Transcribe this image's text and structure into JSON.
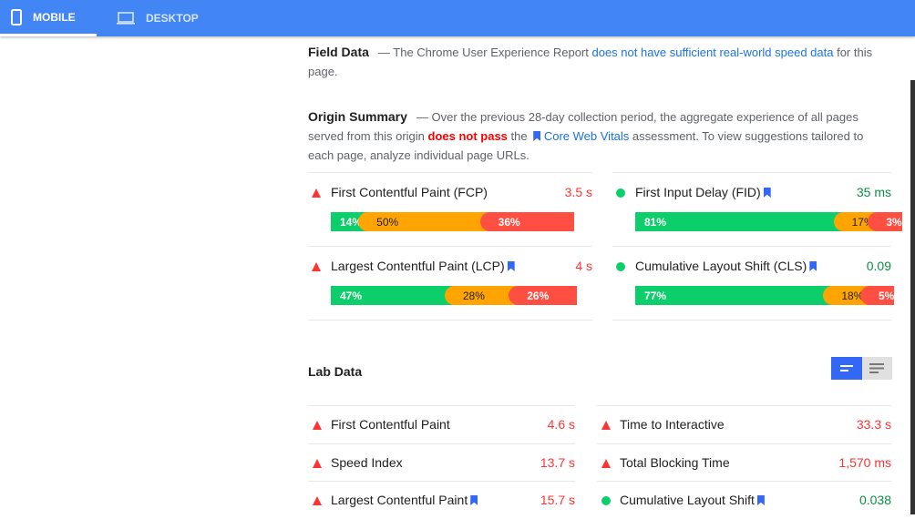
{
  "tabs": [
    {
      "label": "MOBILE",
      "icon": "mobile-icon",
      "active": true
    },
    {
      "label": "DESKTOP",
      "icon": "desktop-icon",
      "active": false
    }
  ],
  "field": {
    "title": "Field Data",
    "text1": "— The Chrome User Experience Report ",
    "link": "does not have sufficient real-world speed data",
    "text2": " for this page."
  },
  "origin": {
    "title": "Origin Summary",
    "text1": "— Over the previous 28-day collection period, the aggregate experience of all pages served from this origin ",
    "fail": "does not pass",
    "text2": " the ",
    "link": "Core Web Vitals",
    "text3": " assessment. To view suggestions tailored to each page, analyze individual page URLs."
  },
  "metrics": [
    {
      "label": "First Contentful Paint (FCP)",
      "value": "3.5 s",
      "status": "fail",
      "bookmark": false,
      "dist": [
        14,
        50,
        36
      ]
    },
    {
      "label": "First Input Delay (FID)",
      "value": "35 ms",
      "status": "pass",
      "bookmark": true,
      "dist": [
        81,
        17,
        3
      ]
    },
    {
      "label": "Largest Contentful Paint (LCP)",
      "value": "4 s",
      "status": "fail",
      "bookmark": true,
      "dist": [
        47,
        28,
        26
      ]
    },
    {
      "label": "Cumulative Layout Shift (CLS)",
      "value": "0.09",
      "status": "pass",
      "bookmark": true,
      "dist": [
        77,
        18,
        5
      ]
    }
  ],
  "dist_labels": [
    [
      "14%",
      "50%",
      "36%"
    ],
    [
      "81%",
      "17%",
      "3%"
    ],
    [
      "47%",
      "28%",
      "26%"
    ],
    [
      "77%",
      "18%",
      "5%"
    ]
  ],
  "lab": {
    "title": "Lab Data",
    "items": [
      {
        "label": "First Contentful Paint",
        "value": "4.6 s",
        "status": "fail",
        "bookmark": false
      },
      {
        "label": "Time to Interactive",
        "value": "33.3 s",
        "status": "fail",
        "bookmark": false
      },
      {
        "label": "Speed Index",
        "value": "13.7 s",
        "status": "fail",
        "bookmark": false
      },
      {
        "label": "Total Blocking Time",
        "value": "1,570 ms",
        "status": "fail",
        "bookmark": false
      },
      {
        "label": "Largest Contentful Paint",
        "value": "15.7 s",
        "status": "fail",
        "bookmark": true
      },
      {
        "label": "Cumulative Layout Shift",
        "value": "0.038",
        "status": "pass",
        "bookmark": true
      }
    ]
  },
  "colors": {
    "header": "#4285f4",
    "pass": "#0cce6b",
    "average": "#ffa400",
    "fail": "#ff4e42",
    "link": "#1a73e8"
  }
}
